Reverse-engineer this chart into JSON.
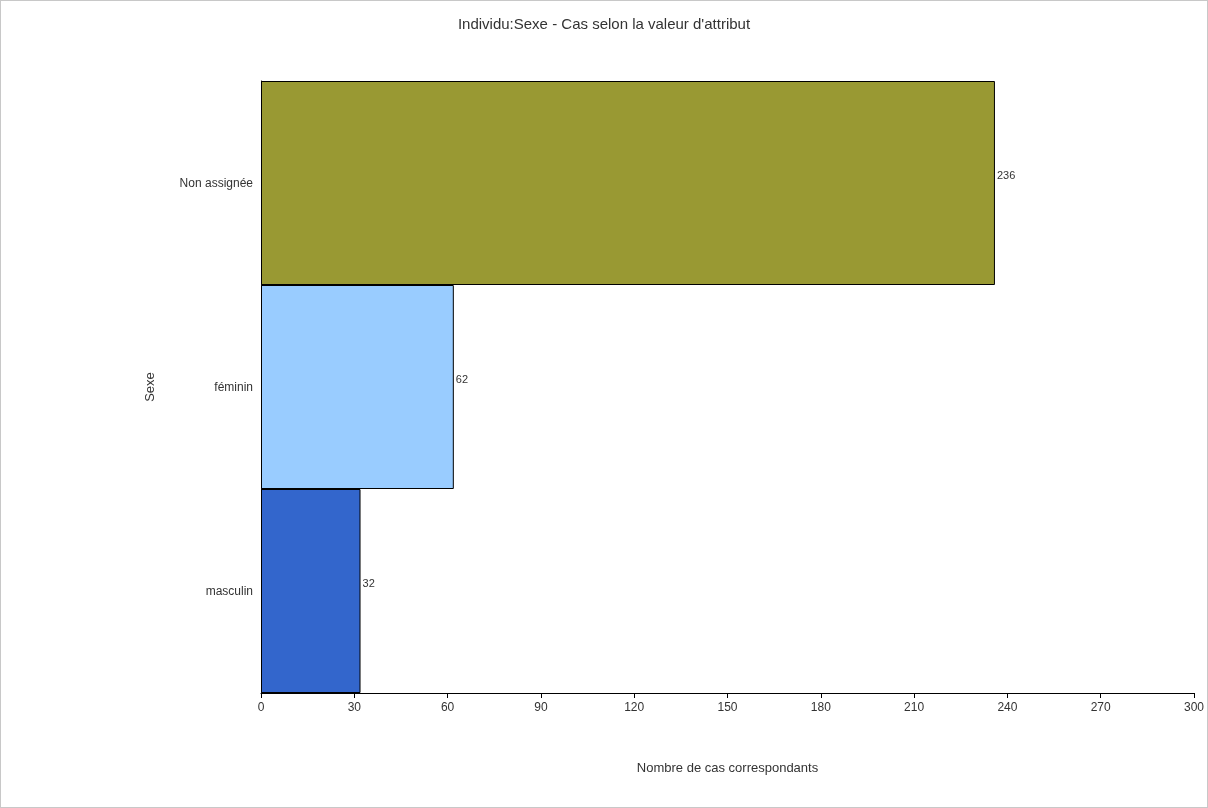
{
  "chart_data": {
    "type": "bar",
    "orientation": "horizontal",
    "title": "Individu:Sexe - Cas selon la valeur d'attribut",
    "xlabel": "Nombre de cas correspondants",
    "ylabel": "Sexe",
    "categories": [
      "Non assignée",
      "féminin",
      "masculin"
    ],
    "values": [
      236,
      62,
      32
    ],
    "colors": [
      "#999933",
      "#99ccff",
      "#3366cc"
    ],
    "xlim": [
      0,
      300
    ],
    "xticks": [
      0,
      30,
      60,
      90,
      120,
      150,
      180,
      210,
      240,
      270,
      300
    ],
    "data_labels": true,
    "grid": false
  }
}
